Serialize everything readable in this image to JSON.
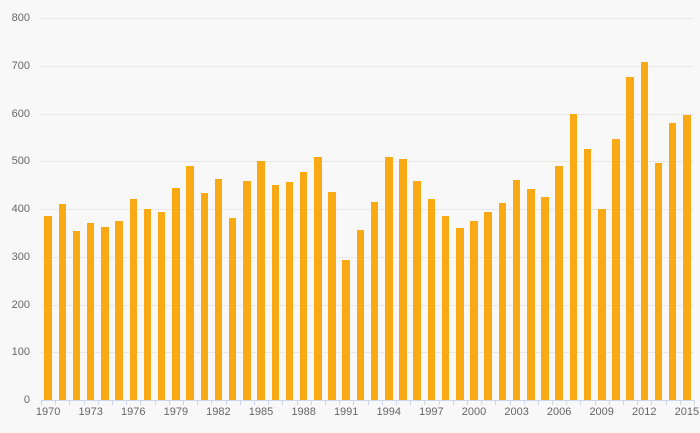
{
  "chart_data": {
    "type": "bar",
    "title": "",
    "xlabel": "",
    "ylabel": "",
    "x": [
      1970,
      1971,
      1972,
      1973,
      1974,
      1975,
      1976,
      1977,
      1978,
      1979,
      1980,
      1981,
      1982,
      1983,
      1984,
      1985,
      1986,
      1987,
      1988,
      1989,
      1990,
      1991,
      1992,
      1993,
      1994,
      1995,
      1996,
      1997,
      1998,
      1999,
      2000,
      2001,
      2002,
      2003,
      2004,
      2005,
      2006,
      2007,
      2008,
      2009,
      2010,
      2011,
      2012,
      2013,
      2014,
      2015
    ],
    "values": [
      385,
      410,
      355,
      371,
      363,
      376,
      422,
      400,
      393,
      444,
      490,
      434,
      463,
      382,
      458,
      501,
      450,
      457,
      478,
      510,
      435,
      294,
      357,
      414,
      510,
      505,
      459,
      420,
      386,
      361,
      375,
      394,
      413,
      461,
      442,
      426,
      491,
      599,
      526,
      400,
      547,
      676,
      707,
      497,
      581,
      597
    ],
    "ylim": [
      0,
      800
    ],
    "ytick_interval": 100,
    "y_ticks": [
      0,
      100,
      200,
      300,
      400,
      500,
      600,
      700,
      800
    ],
    "x_tick_labels": [
      "1970",
      "1973",
      "1976",
      "1979",
      "1982",
      "1985",
      "1988",
      "1991",
      "1994",
      "1997",
      "2000",
      "2003",
      "2006",
      "2009",
      "2012",
      "2015"
    ],
    "x_label_step": 3,
    "grid": "horizontal",
    "legend_position": "none",
    "colors": {
      "bar": "#F9A913",
      "background": "#F8F8F8",
      "gridline": "#E7E7E7",
      "axis_line": "#CCD6EB",
      "tick": "#CCD6EB",
      "label_text": "#666666"
    }
  }
}
